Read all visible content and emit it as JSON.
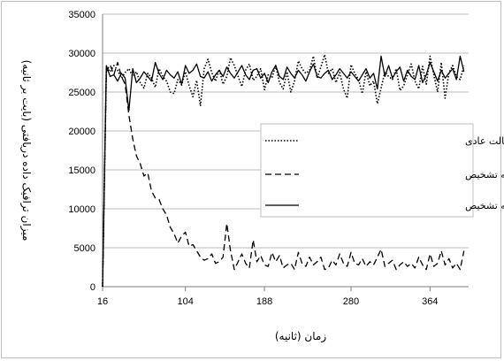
{
  "chart_data": {
    "type": "line",
    "xlabel": "زمان (ثانیه)",
    "ylabel": "میزان ترافیک داده دریافتی (بایت بر ثانیه)",
    "xlim": [
      16,
      405
    ],
    "ylim": [
      0,
      35000
    ],
    "xticks": [
      16,
      104,
      188,
      280,
      364
    ],
    "yticks": [
      0,
      5000,
      10000,
      15000,
      20000,
      25000,
      30000,
      35000
    ],
    "grid": "horizontal",
    "legend_position": "center-right",
    "series": [
      {
        "name": "شبکه در حالت عادی",
        "style": "dotted",
        "x": [
          16,
          20,
          24,
          28,
          32,
          36,
          40,
          44,
          48,
          52,
          56,
          60,
          64,
          68,
          72,
          76,
          80,
          84,
          88,
          92,
          96,
          100,
          104,
          108,
          112,
          116,
          120,
          124,
          128,
          132,
          136,
          140,
          144,
          148,
          152,
          156,
          160,
          164,
          168,
          172,
          176,
          180,
          184,
          188,
          192,
          196,
          200,
          204,
          208,
          212,
          216,
          220,
          224,
          228,
          232,
          236,
          240,
          244,
          248,
          252,
          256,
          260,
          264,
          268,
          272,
          276,
          280,
          284,
          288,
          292,
          296,
          300,
          304,
          308,
          312,
          316,
          320,
          324,
          328,
          332,
          336,
          340,
          344,
          348,
          352,
          356,
          360,
          364,
          368,
          372,
          376,
          380,
          384,
          388,
          392,
          396,
          400
        ],
        "y": [
          0,
          28200,
          27600,
          28400,
          27800,
          26800,
          27500,
          28000,
          27000,
          27600,
          26200,
          25500,
          27400,
          26800,
          25600,
          28000,
          27000,
          26400,
          25000,
          24800,
          26600,
          25900,
          27600,
          25800,
          24400,
          26500,
          23200,
          28000,
          29200,
          27500,
          26400,
          27900,
          26000,
          27000,
          29400,
          28400,
          27000,
          25700,
          27800,
          28600,
          26500,
          27000,
          28000,
          25300,
          27200,
          26800,
          28400,
          26200,
          25400,
          27600,
          25000,
          26400,
          29000,
          28000,
          27400,
          27800,
          29600,
          26800,
          28200,
          29800,
          27400,
          28000,
          26200,
          27500,
          25400,
          24200,
          28500,
          27400,
          26600,
          24800,
          27600,
          25800,
          26400,
          23500,
          25500,
          27600,
          27000,
          26600,
          28000,
          25200,
          25800,
          27200,
          28600,
          26400,
          25400,
          28300,
          26000,
          29600,
          27200,
          25000,
          28800,
          24200,
          27500,
          28400,
          27000,
          26600,
          28400
        ]
      },
      {
        "name": "شبکه تحت حمله بدون سامانه تشخیص",
        "style": "dashed",
        "x": [
          16,
          20,
          24,
          28,
          32,
          36,
          40,
          44,
          48,
          52,
          56,
          60,
          64,
          68,
          72,
          76,
          80,
          84,
          88,
          92,
          96,
          100,
          104,
          108,
          112,
          116,
          120,
          124,
          128,
          132,
          136,
          140,
          144,
          148,
          152,
          156,
          160,
          164,
          168,
          172,
          176,
          180,
          184,
          188,
          192,
          196,
          200,
          204,
          208,
          212,
          216,
          220,
          224,
          228,
          232,
          236,
          240,
          244,
          248,
          252,
          256,
          260,
          264,
          268,
          272,
          276,
          280,
          284,
          288,
          292,
          296,
          300,
          304,
          308,
          312,
          316,
          320,
          324,
          328,
          332,
          336,
          340,
          344,
          348,
          352,
          356,
          360,
          364,
          368,
          372,
          376,
          380,
          384,
          388,
          392,
          396,
          400
        ],
        "y": [
          0,
          27600,
          28500,
          27200,
          28800,
          27000,
          26000,
          22000,
          19000,
          16800,
          15800,
          14200,
          14600,
          12300,
          11400,
          11200,
          10000,
          9200,
          7600,
          6800,
          5600,
          6500,
          7000,
          5200,
          5400,
          4600,
          3800,
          3400,
          3600,
          4200,
          3000,
          3200,
          3800,
          8100,
          4600,
          2200,
          3200,
          4200,
          3000,
          2400,
          6000,
          3200,
          4000,
          2800,
          2600,
          4400,
          3200,
          4000,
          2400,
          2800,
          3000,
          2200,
          4400,
          3000,
          2600,
          3800,
          2800,
          3200,
          3800,
          2200,
          2400,
          3400,
          2800,
          4200,
          3000,
          2600,
          4400,
          3000,
          2800,
          3600,
          2600,
          3200,
          2800,
          3800,
          4800,
          2600,
          3000,
          3400,
          2200,
          2800,
          3200,
          2600,
          3000,
          2400,
          3800,
          2800,
          2200,
          4200,
          2600,
          3000,
          4600,
          2800,
          3600,
          2400,
          3000,
          2200,
          4600
        ]
      },
      {
        "name": "شبکه تحت حمله در حضور سامانه تشخیص",
        "style": "solid",
        "x": [
          16,
          20,
          24,
          28,
          32,
          36,
          40,
          44,
          48,
          52,
          56,
          60,
          64,
          68,
          72,
          76,
          80,
          84,
          88,
          92,
          96,
          100,
          104,
          108,
          112,
          116,
          120,
          124,
          128,
          132,
          136,
          140,
          144,
          148,
          152,
          156,
          160,
          164,
          168,
          172,
          176,
          180,
          184,
          188,
          192,
          196,
          200,
          204,
          208,
          212,
          216,
          220,
          224,
          228,
          232,
          236,
          240,
          244,
          248,
          252,
          256,
          260,
          264,
          268,
          272,
          276,
          280,
          284,
          288,
          292,
          296,
          300,
          304,
          308,
          312,
          316,
          320,
          324,
          328,
          332,
          336,
          340,
          344,
          348,
          352,
          356,
          360,
          364,
          368,
          372,
          376,
          380,
          384,
          388,
          392,
          396,
          400
        ],
        "y": [
          0,
          28400,
          27000,
          27200,
          26400,
          27400,
          26800,
          22600,
          28000,
          26200,
          26800,
          27600,
          27000,
          26400,
          28800,
          27400,
          26600,
          27800,
          27200,
          26800,
          27600,
          26000,
          28400,
          27400,
          27800,
          28600,
          27000,
          26800,
          27600,
          26400,
          27200,
          27800,
          27000,
          28200,
          27400,
          26800,
          27600,
          28400,
          27200,
          26600,
          27800,
          28000,
          26800,
          27400,
          26200,
          27600,
          28400,
          27000,
          26600,
          28200,
          27400,
          26800,
          27800,
          27200,
          26400,
          27600,
          28600,
          27000,
          26800,
          27400,
          27800,
          26600,
          27200,
          28000,
          27400,
          26800,
          27600,
          27000,
          26400,
          27200,
          28000,
          26800,
          27400,
          25400,
          29600,
          27000,
          28400,
          26800,
          27600,
          28200,
          26400,
          27800,
          27000,
          26600,
          28400,
          26200,
          27200,
          28800,
          27600,
          26400,
          27800,
          26800,
          27400,
          28000,
          26600,
          29600,
          27600
        ]
      }
    ]
  }
}
